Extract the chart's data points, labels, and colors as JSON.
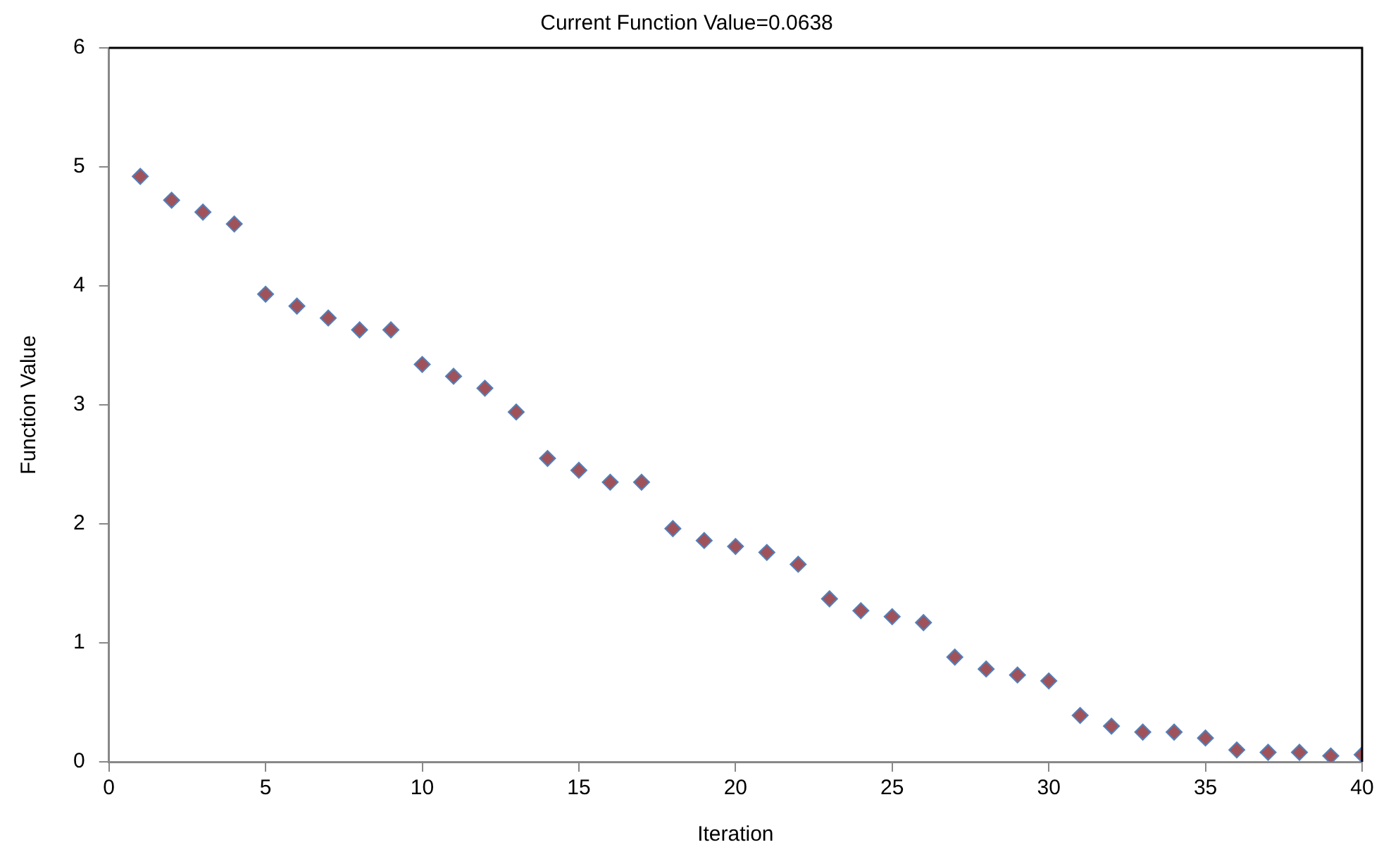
{
  "chart_data": {
    "type": "scatter",
    "title": "Current Function Value=0.0638",
    "xlabel": "Iteration",
    "ylabel": "Function Value",
    "x": [
      1,
      2,
      3,
      4,
      5,
      6,
      7,
      8,
      9,
      10,
      11,
      12,
      13,
      14,
      15,
      16,
      17,
      18,
      19,
      20,
      21,
      22,
      23,
      24,
      25,
      26,
      27,
      28,
      29,
      30,
      31,
      32,
      33,
      34,
      35,
      36,
      37,
      38,
      39,
      40
    ],
    "series": [
      {
        "color": "#a0525a",
        "values": [
          4.92,
          4.72,
          4.62,
          4.52,
          3.93,
          3.83,
          3.73,
          3.63,
          3.63,
          3.34,
          3.24,
          3.14,
          2.94,
          2.55,
          2.45,
          2.35,
          2.35,
          1.96,
          1.86,
          1.81,
          1.76,
          1.66,
          1.37,
          1.27,
          1.22,
          1.17,
          0.88,
          0.78,
          0.73,
          0.68,
          0.39,
          0.3,
          0.25,
          0.25,
          0.2,
          0.1,
          0.08,
          0.08,
          0.05,
          0.06
        ]
      }
    ],
    "xlim": [
      0,
      40
    ],
    "xticks": [
      0,
      5,
      10,
      15,
      20,
      25,
      30,
      35,
      40
    ],
    "ylim": [
      0,
      6
    ],
    "yticks": [
      0,
      1,
      2,
      3,
      4,
      5,
      6
    ],
    "grid": false,
    "legend": false,
    "marker": "diamond"
  }
}
